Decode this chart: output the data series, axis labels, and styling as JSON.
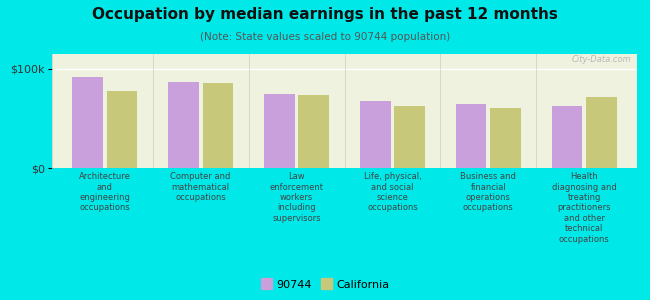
{
  "title": "Occupation by median earnings in the past 12 months",
  "subtitle": "(Note: State values scaled to 90744 population)",
  "categories": [
    "Architecture\nand\nengineering\noccupations",
    "Computer and\nmathematical\noccupations",
    "Law\nenforcement\nworkers\nincluding\nsupervisors",
    "Life, physical,\nand social\nscience\noccupations",
    "Business and\nfinancial\noperations\noccupations",
    "Health\ndiagnosing and\ntreating\npractitioners\nand other\ntechnical\noccupations"
  ],
  "values_90744": [
    92000,
    87000,
    75000,
    68000,
    65000,
    63000
  ],
  "values_california": [
    78000,
    86000,
    74000,
    63000,
    61000,
    72000
  ],
  "color_90744": "#c9a0dc",
  "color_california": "#c8c87a",
  "background_outer": "#00e8e8",
  "ylim": [
    0,
    115000
  ],
  "ytick_values": [
    0,
    100000
  ],
  "ytick_labels": [
    "$0",
    "$100k"
  ],
  "legend_label_90744": "90744",
  "legend_label_california": "California",
  "watermark": "City-Data.com"
}
